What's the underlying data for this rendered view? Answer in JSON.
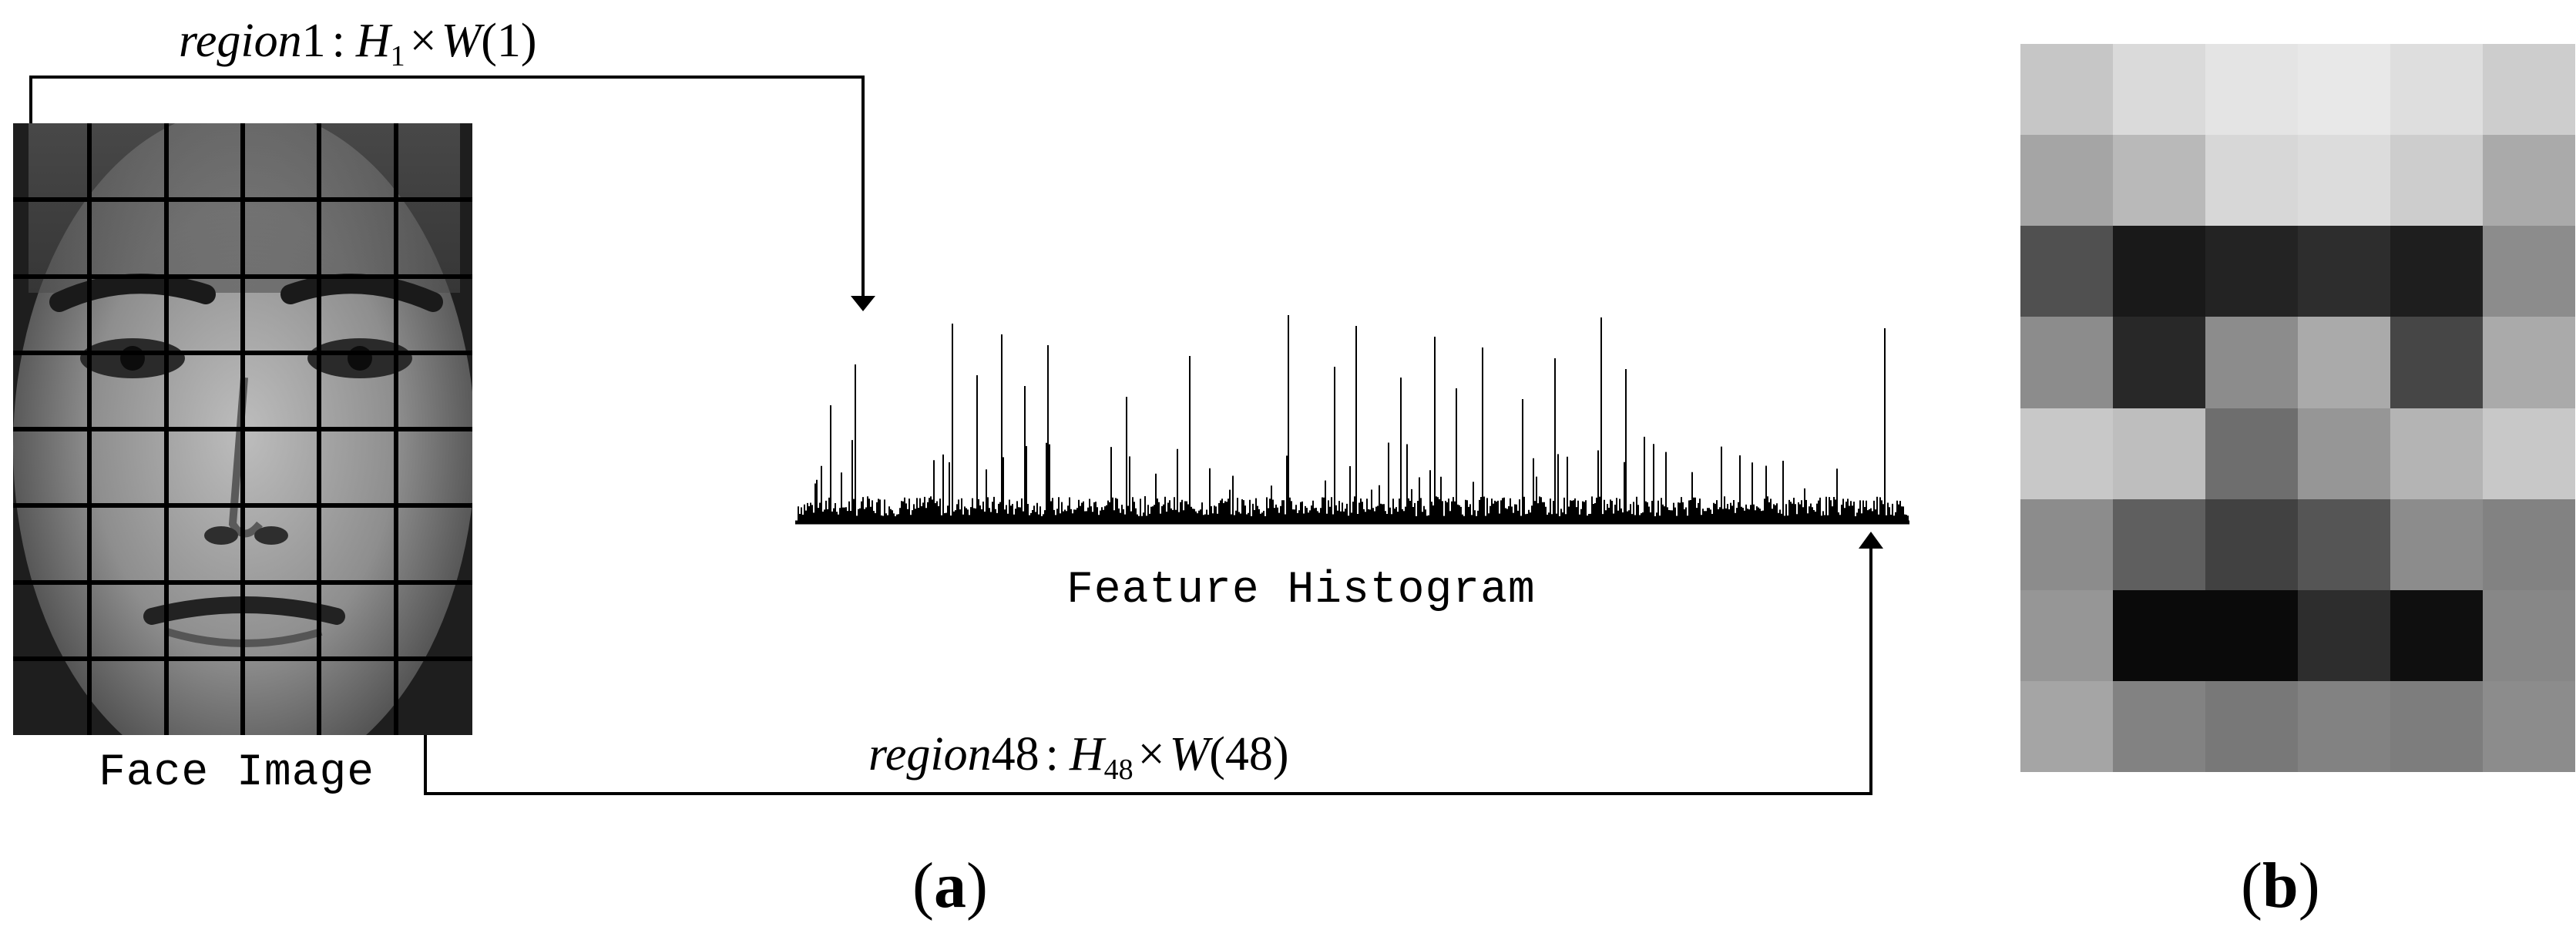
{
  "panel_a": {
    "label_open": "(",
    "label_letter": "a",
    "label_close": ")",
    "region1_label": {
      "word": "region",
      "num": "1",
      "sep": ":",
      "H": "H",
      "H_sub": "1",
      "times": "×",
      "W": "W",
      "arg": "(1)"
    },
    "region48_label": {
      "word": "region",
      "num": "48",
      "sep": ":",
      "H": "H",
      "H_sub": "48",
      "times": "×",
      "W": "W",
      "arg": "(48)"
    },
    "face_caption": "Face Image",
    "histogram_caption": "Feature Histogram",
    "face_grid": {
      "columns": 6,
      "rows": 8
    }
  },
  "panel_b": {
    "label_open": "(",
    "label_letter": "b",
    "label_close": ")",
    "grid": {
      "columns": 6,
      "rows": 8
    },
    "gray_levels": [
      [
        198,
        218,
        228,
        232,
        222,
        205
      ],
      [
        165,
        185,
        215,
        220,
        205,
        170
      ],
      [
        80,
        25,
        35,
        45,
        30,
        140
      ],
      [
        140,
        40,
        140,
        170,
        70,
        170
      ],
      [
        200,
        190,
        110,
        150,
        180,
        200
      ],
      [
        140,
        95,
        65,
        85,
        140,
        130
      ],
      [
        150,
        10,
        10,
        45,
        15,
        135
      ],
      [
        165,
        130,
        120,
        130,
        125,
        140
      ]
    ]
  }
}
